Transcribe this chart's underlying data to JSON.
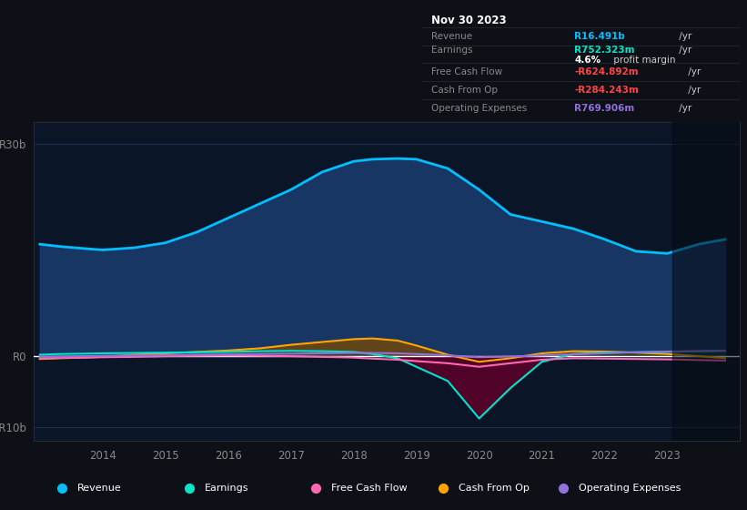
{
  "background_color": "#0d1117",
  "plot_area_color": "#0a1628",
  "ylabel_top": "R30b",
  "ylabel_mid": "R0",
  "ylabel_bot": "-R10b",
  "ylim": [
    -12,
    33
  ],
  "yticks": [
    30,
    0,
    -10
  ],
  "years": [
    2013.0,
    2013.3,
    2013.7,
    2014.0,
    2014.5,
    2015.0,
    2015.5,
    2016.0,
    2016.5,
    2017.0,
    2017.5,
    2018.0,
    2018.3,
    2018.7,
    2019.0,
    2019.5,
    2020.0,
    2020.5,
    2021.0,
    2021.5,
    2022.0,
    2022.5,
    2023.0,
    2023.5,
    2023.92
  ],
  "revenue": [
    15.8,
    15.5,
    15.2,
    15.0,
    15.3,
    16.0,
    17.5,
    19.5,
    21.5,
    23.5,
    26.0,
    27.5,
    27.8,
    27.9,
    27.8,
    26.5,
    23.5,
    20.0,
    19.0,
    18.0,
    16.5,
    14.8,
    14.5,
    15.8,
    16.491
  ],
  "earnings": [
    0.2,
    0.3,
    0.35,
    0.4,
    0.45,
    0.5,
    0.55,
    0.6,
    0.7,
    0.75,
    0.7,
    0.6,
    0.3,
    -0.3,
    -1.5,
    -3.5,
    -8.8,
    -4.5,
    -0.8,
    0.3,
    0.5,
    0.55,
    0.6,
    0.7,
    0.752
  ],
  "free_cash_flow": [
    -0.3,
    -0.25,
    -0.2,
    -0.15,
    -0.1,
    0.0,
    0.05,
    0.1,
    0.05,
    0.0,
    -0.1,
    -0.2,
    -0.35,
    -0.5,
    -0.7,
    -1.0,
    -1.5,
    -1.0,
    -0.5,
    -0.3,
    -0.35,
    -0.4,
    -0.45,
    -0.55,
    -0.625
  ],
  "cash_from_op": [
    -0.4,
    -0.3,
    -0.2,
    -0.1,
    0.2,
    0.4,
    0.6,
    0.8,
    1.1,
    1.6,
    2.0,
    2.4,
    2.5,
    2.2,
    1.5,
    0.2,
    -0.8,
    -0.3,
    0.4,
    0.7,
    0.65,
    0.5,
    0.3,
    0.0,
    -0.284
  ],
  "operating_expenses": [
    -0.1,
    -0.05,
    0.0,
    0.05,
    0.1,
    0.15,
    0.2,
    0.25,
    0.3,
    0.35,
    0.4,
    0.45,
    0.45,
    0.4,
    0.3,
    0.1,
    -0.15,
    -0.05,
    0.1,
    0.25,
    0.4,
    0.55,
    0.65,
    0.72,
    0.77
  ],
  "revenue_color": "#00bfff",
  "revenue_fill": "#1a3a6a",
  "earnings_color": "#00e5cc",
  "free_cash_flow_color": "#ff69b4",
  "cash_from_op_color": "#ffa500",
  "operating_expenses_color": "#9370db",
  "zero_line_color": "#ffffff",
  "grid_color": "#1e3050",
  "info_box": {
    "date": "Nov 30 2023",
    "revenue_label": "Revenue",
    "revenue_value": "R16.491b",
    "revenue_suffix": " /yr",
    "earnings_label": "Earnings",
    "earnings_value": "R752.323m",
    "earnings_suffix": " /yr",
    "margin_pct": "4.6%",
    "margin_text": " profit margin",
    "fcf_label": "Free Cash Flow",
    "fcf_value": "-R624.892m",
    "fcf_suffix": " /yr",
    "cfo_label": "Cash From Op",
    "cfo_value": "-R284.243m",
    "cfo_suffix": " /yr",
    "opex_label": "Operating Expenses",
    "opex_value": "R769.906m",
    "opex_suffix": " /yr",
    "bg_color": "#050505",
    "border_color": "#2a2a2a",
    "label_color": "#888888",
    "white_color": "#cccccc",
    "revenue_val_color": "#00bfff",
    "earnings_val_color": "#00e5cc",
    "fcf_val_color": "#ff4444",
    "cfo_val_color": "#ff4444",
    "opex_val_color": "#9370db",
    "margin_color": "#ffffff"
  },
  "legend": [
    {
      "label": "Revenue",
      "color": "#00bfff"
    },
    {
      "label": "Earnings",
      "color": "#00e5cc"
    },
    {
      "label": "Free Cash Flow",
      "color": "#ff69b4"
    },
    {
      "label": "Cash From Op",
      "color": "#ffa500"
    },
    {
      "label": "Operating Expenses",
      "color": "#9370db"
    }
  ],
  "legend_bg": "#111111",
  "legend_border": "#333333",
  "tick_color": "#888888",
  "axis_color": "#2a2a2a",
  "xmin": 2012.9,
  "xmax": 2024.15,
  "x_tick_years": [
    2014,
    2015,
    2016,
    2017,
    2018,
    2019,
    2020,
    2021,
    2022,
    2023
  ]
}
